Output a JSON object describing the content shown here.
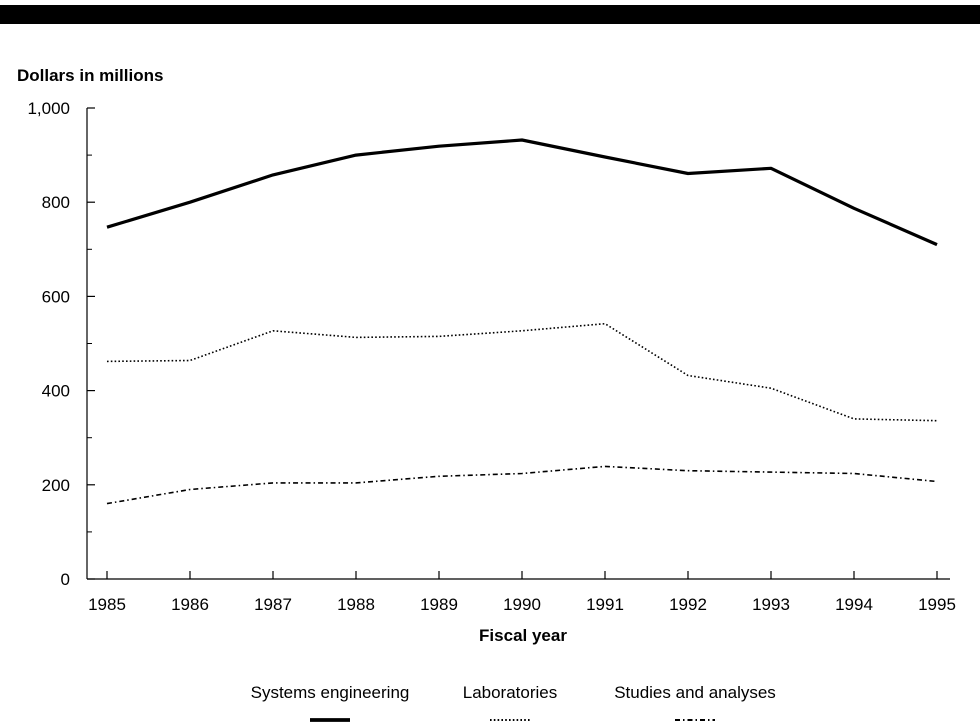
{
  "chart_data": {
    "type": "line",
    "title": "",
    "ylabel": "Dollars in millions",
    "xlabel": "Fiscal year",
    "x": [
      "1985",
      "1986",
      "1987",
      "1988",
      "1989",
      "1990",
      "1991",
      "1992",
      "1993",
      "1994",
      "1995"
    ],
    "ylim": [
      0,
      1000
    ],
    "yticks": [
      "0",
      "200",
      "400",
      "600",
      "800",
      "1,000"
    ],
    "grid": false,
    "legend_position": "bottom",
    "series": [
      {
        "name": "Systems engineering",
        "style": "solid-thick",
        "color": "#000000",
        "values": [
          747,
          800,
          858,
          900,
          919,
          932,
          896,
          861,
          872,
          787,
          710
        ]
      },
      {
        "name": "Laboratories",
        "style": "dotted",
        "color": "#000000",
        "values": [
          462,
          464,
          527,
          513,
          515,
          527,
          542,
          432,
          405,
          340,
          336
        ]
      },
      {
        "name": "Studies and analyses",
        "style": "dash-dot",
        "color": "#000000",
        "values": [
          160,
          190,
          204,
          204,
          218,
          224,
          239,
          230,
          227,
          224,
          207
        ]
      }
    ]
  },
  "header_bar_color": "#000000"
}
